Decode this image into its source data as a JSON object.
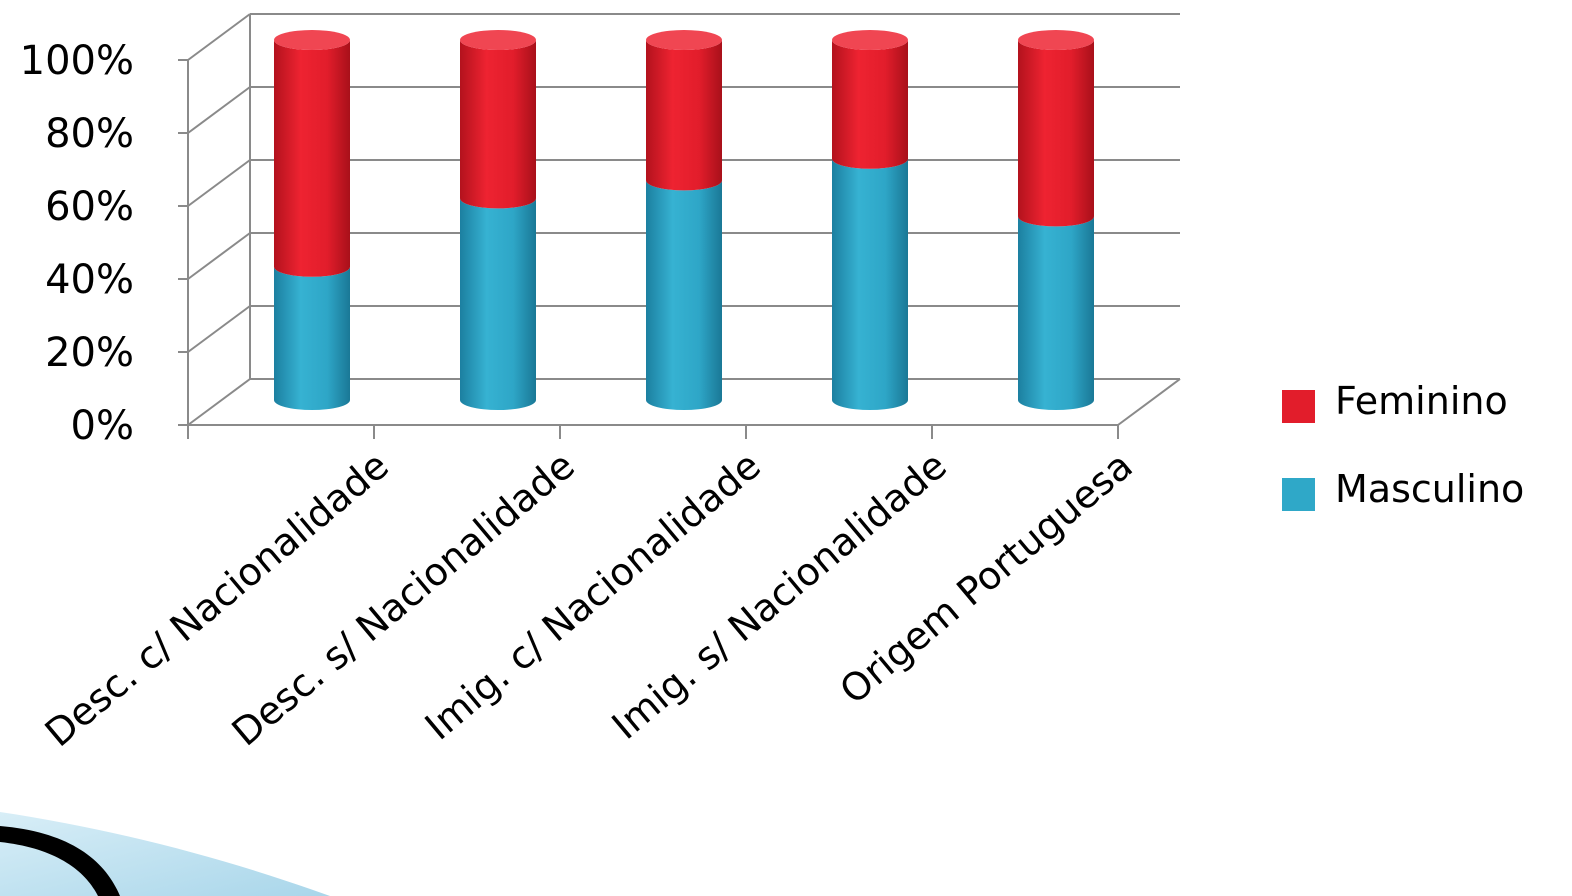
{
  "chart_data": {
    "type": "bar",
    "stacked": true,
    "percent_stacked": true,
    "three_d": true,
    "bar_shape": "cylinder",
    "categories": [
      "Desc. c/ Nacionalidade",
      "Desc. s/ Nacionalidade",
      "Imig. c/ Nacionalidade",
      "Imig. s/ Nacionalidade",
      "Origem Portuguesa"
    ],
    "series": [
      {
        "name": "Masculino",
        "color": "#2fa8c8",
        "values": [
          37,
          56,
          61,
          67,
          51
        ]
      },
      {
        "name": "Feminino",
        "color": "#e21d2b",
        "values": [
          63,
          44,
          39,
          33,
          49
        ]
      }
    ],
    "yticks": [
      "0%",
      "20%",
      "40%",
      "60%",
      "80%",
      "100%"
    ],
    "ylim": [
      0,
      100
    ],
    "grid": true,
    "legend_position": "right",
    "legend_order": [
      "Feminino",
      "Masculino"
    ],
    "title": "",
    "xlabel": "",
    "ylabel": ""
  }
}
